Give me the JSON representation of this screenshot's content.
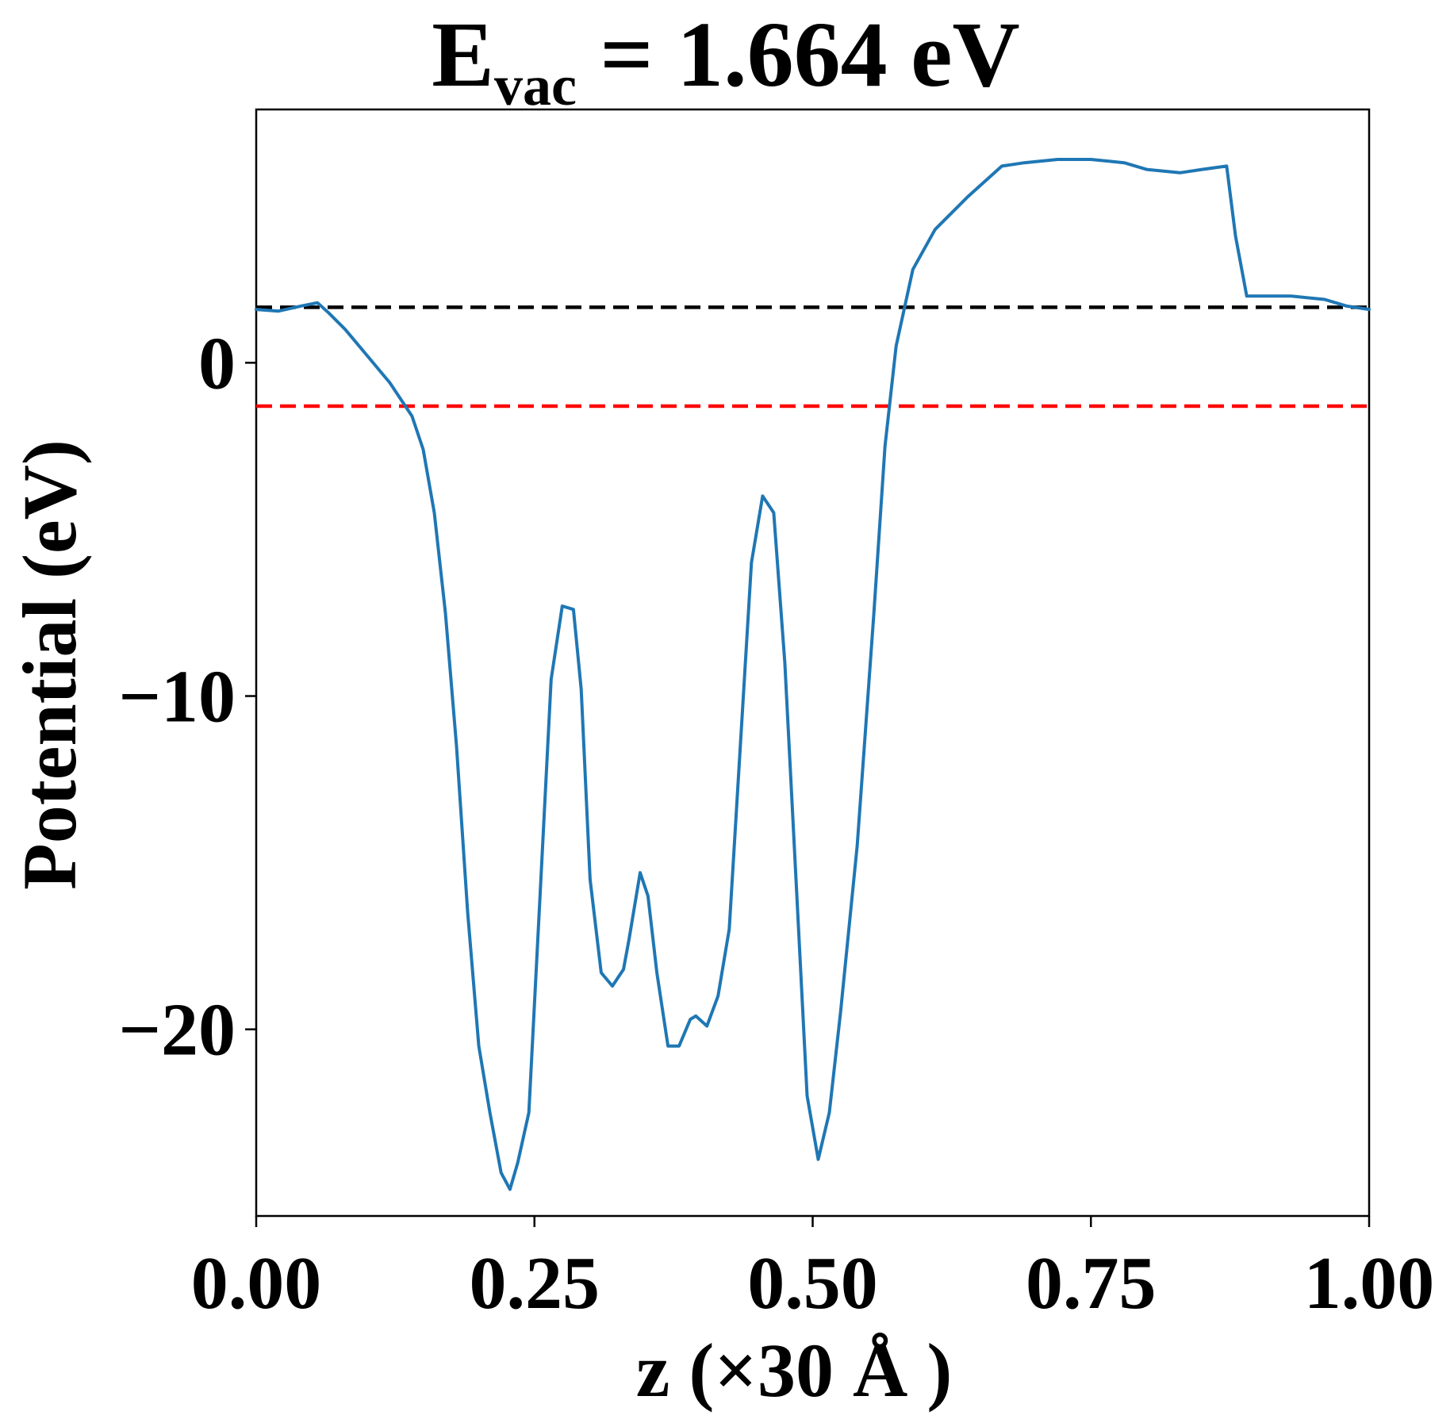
{
  "chart_data": {
    "type": "line",
    "title": {
      "main": "E",
      "subscript": "vac",
      "rest": " = 1.664 eV"
    },
    "xlabel": "z (×30 Å )",
    "ylabel": "Potential (eV)",
    "xlim": [
      0.0,
      1.0
    ],
    "ylim": [
      -25.6,
      7.6
    ],
    "xticks": [
      0.0,
      0.25,
      0.5,
      0.75,
      1.0
    ],
    "xtick_labels": [
      "0.00",
      "0.25",
      "0.50",
      "0.75",
      "1.00"
    ],
    "yticks": [
      0,
      -10,
      -20
    ],
    "ytick_labels": [
      "0",
      "−10",
      "−20"
    ],
    "grid": false,
    "legend": "none",
    "series": [
      {
        "color": "#1f77b4",
        "x": [
          0.0,
          0.02,
          0.04,
          0.055,
          0.065,
          0.08,
          0.1,
          0.12,
          0.14,
          0.15,
          0.16,
          0.17,
          0.18,
          0.19,
          0.2,
          0.21,
          0.22,
          0.228,
          0.235,
          0.245,
          0.255,
          0.265,
          0.275,
          0.285,
          0.292,
          0.3,
          0.31,
          0.32,
          0.33,
          0.335,
          0.345,
          0.352,
          0.36,
          0.37,
          0.38,
          0.39,
          0.395,
          0.405,
          0.415,
          0.425,
          0.435,
          0.445,
          0.455,
          0.465,
          0.475,
          0.485,
          0.495,
          0.505,
          0.515,
          0.525,
          0.54,
          0.555,
          0.565,
          0.575,
          0.59,
          0.61,
          0.64,
          0.67,
          0.69,
          0.72,
          0.75,
          0.78,
          0.8,
          0.83,
          0.85,
          0.872,
          0.88,
          0.89,
          0.9,
          0.93,
          0.96,
          0.98,
          1.0
        ],
        "y": [
          1.6,
          1.55,
          1.7,
          1.8,
          1.5,
          1.0,
          0.2,
          -0.6,
          -1.6,
          -2.6,
          -4.5,
          -7.5,
          -11.5,
          -16.5,
          -20.5,
          -22.5,
          -24.3,
          -24.8,
          -24.0,
          -22.5,
          -16.0,
          -9.5,
          -7.3,
          -7.4,
          -9.8,
          -15.5,
          -18.3,
          -18.7,
          -18.2,
          -17.3,
          -15.3,
          -16.0,
          -18.3,
          -20.5,
          -20.5,
          -19.7,
          -19.6,
          -19.9,
          -19.0,
          -17.0,
          -11.5,
          -6.0,
          -4.0,
          -4.5,
          -9.0,
          -15.5,
          -22.0,
          -23.9,
          -22.5,
          -19.5,
          -14.5,
          -7.5,
          -2.5,
          0.5,
          2.8,
          4.0,
          5.0,
          5.9,
          6.0,
          6.1,
          6.1,
          6.0,
          5.8,
          5.7,
          5.8,
          5.9,
          3.8,
          2.0,
          2.0,
          2.0,
          1.9,
          1.7,
          1.6
        ]
      }
    ],
    "hlines": [
      {
        "y": 1.664,
        "color": "#000000",
        "style": "dashed"
      },
      {
        "y": -1.3,
        "color": "#ff0000",
        "style": "dashed"
      }
    ]
  }
}
